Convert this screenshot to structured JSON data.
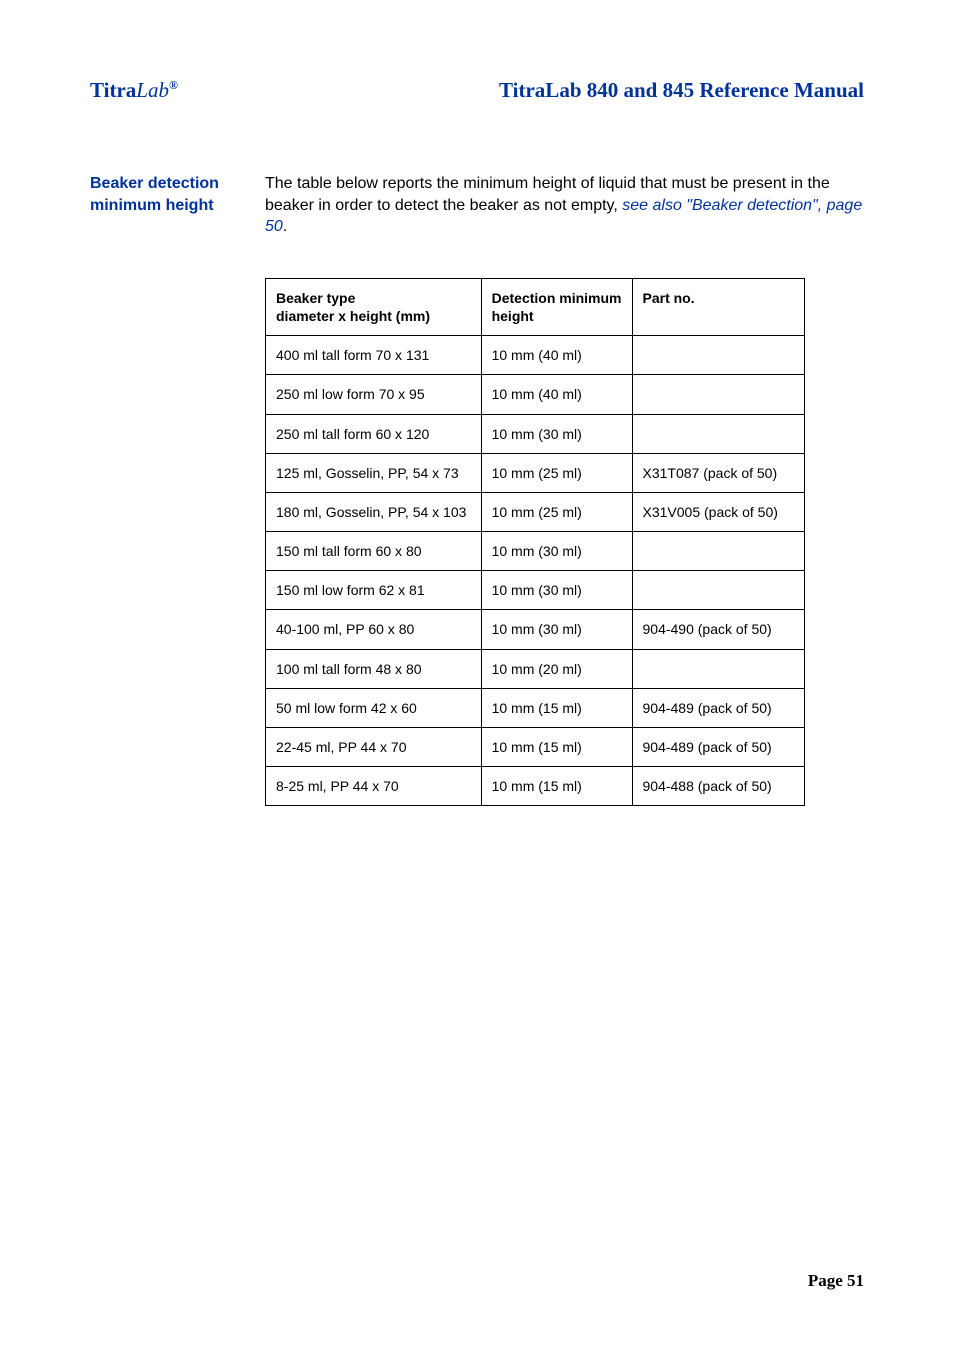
{
  "header": {
    "brand_prefix": "Titra",
    "brand_suffix": "Lab",
    "brand_reg": "®",
    "doc_title": "TitraLab 840 and 845 Reference Manual"
  },
  "section": {
    "label": "Beaker detection minimum height",
    "para_before": "The table below reports the minimum height of liquid that must be present in the beaker in order to detect the beaker as not empty,  ",
    "para_link": "see also \"Beaker detection\", page 50",
    "para_after": "."
  },
  "table": {
    "columns": [
      "Beaker type\ndiameter x height (mm)",
      "Detection minimum height",
      "Part no."
    ],
    "rows": [
      [
        "400 ml tall form 70 x 131",
        "10 mm (40 ml)",
        ""
      ],
      [
        "250 ml low form 70 x 95",
        "10 mm (40 ml)",
        ""
      ],
      [
        "250 ml tall form 60 x 120",
        "10 mm (30 ml)",
        ""
      ],
      [
        "125 ml, Gosselin, PP, 54 x 73",
        "10 mm (25 ml)",
        "X31T087 (pack of 50)"
      ],
      [
        "180 ml, Gosselin, PP, 54 x 103",
        "10 mm (25 ml)",
        "X31V005 (pack of 50)"
      ],
      [
        "150 ml tall form 60 x 80",
        "10 mm (30 ml)",
        ""
      ],
      [
        "150 ml low form 62 x 81",
        "10 mm (30 ml)",
        ""
      ],
      [
        "40-100 ml, PP 60 x 80",
        "10 mm (30 ml)",
        "904-490 (pack of 50)"
      ],
      [
        "100 ml tall form 48 x 80",
        "10 mm (20 ml)",
        ""
      ],
      [
        "50 ml low form 42 x 60",
        "10 mm (15 ml)",
        "904-489 (pack of 50)"
      ],
      [
        "22-45 ml, PP 44 x 70",
        "10 mm (15 ml)",
        "904-489 (pack of 50)"
      ],
      [
        "8-25 ml, PP 44 x 70",
        "10 mm (15 ml)",
        "904-488 (pack of 50)"
      ]
    ],
    "col_widths_pct": [
      40,
      28,
      32
    ],
    "border_color": "#000000",
    "font_size": 14
  },
  "footer": {
    "page": "Page 51"
  },
  "colors": {
    "accent": "#003399",
    "text": "#000000",
    "background": "#ffffff"
  }
}
